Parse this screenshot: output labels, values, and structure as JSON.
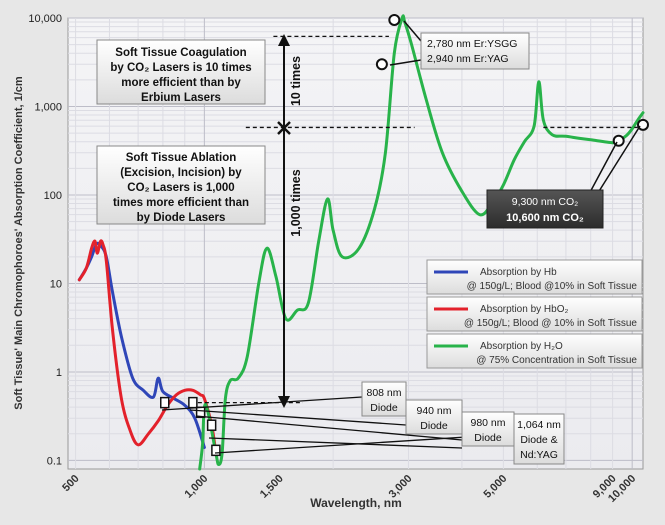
{
  "chart_data": {
    "type": "line",
    "title": "",
    "xlabel": "Wavelength, nm",
    "ylabel": "Soft Tissue' Main Chromophoroes' Absorption Coefficient, 1/cm",
    "xscale": "log",
    "yscale": "log",
    "xlim": [
      480,
      10600
    ],
    "ylim": [
      0.08,
      10000
    ],
    "grid": true,
    "x_ticks": [
      {
        "value": 500,
        "label": "500"
      },
      {
        "value": 1000,
        "label": "1,000"
      },
      {
        "value": 1500,
        "label": "1,500"
      },
      {
        "value": 3000,
        "label": "3,000"
      },
      {
        "value": 5000,
        "label": "5,000"
      },
      {
        "value": 9000,
        "label": "9,000"
      },
      {
        "value": 10000,
        "label": "10,000"
      }
    ],
    "y_ticks": [
      {
        "value": 0.1,
        "label": "0.1"
      },
      {
        "value": 1,
        "label": "1"
      },
      {
        "value": 10,
        "label": "10"
      },
      {
        "value": 100,
        "label": "100"
      },
      {
        "value": 1000,
        "label": "1,000"
      },
      {
        "value": 10000,
        "label": "10,000"
      }
    ],
    "legend_placement": "right",
    "legend": [
      {
        "line1": "Absorption by Hb",
        "line2": "@ 150g/L; Blood @10% in Soft Tissue",
        "color": "#2f46b8"
      },
      {
        "line1": "Absorption by HbO₂",
        "line2": "@ 150g/L; Blood @ 10% in Soft Tissue",
        "color": "#e3212b"
      },
      {
        "line1": "Absorption by H₂O",
        "line2": "@ 75% Concentration in Soft Tissue",
        "color": "#28b34a"
      }
    ],
    "series": [
      {
        "key": "hb",
        "color": "#2f46b8",
        "points": [
          [
            510,
            11
          ],
          [
            530,
            15
          ],
          [
            545,
            20
          ],
          [
            560,
            28
          ],
          [
            575,
            26
          ],
          [
            590,
            20
          ],
          [
            610,
            8
          ],
          [
            640,
            2.5
          ],
          [
            680,
            0.85
          ],
          [
            720,
            0.62
          ],
          [
            760,
            0.52
          ],
          [
            780,
            0.85
          ],
          [
            800,
            0.6
          ],
          [
            850,
            0.5
          ],
          [
            900,
            0.42
          ],
          [
            950,
            0.3
          ],
          [
            1000,
            0.14
          ]
        ]
      },
      {
        "key": "hbo2",
        "color": "#e3212b",
        "points": [
          [
            510,
            11
          ],
          [
            530,
            15
          ],
          [
            545,
            25
          ],
          [
            555,
            30
          ],
          [
            562,
            22
          ],
          [
            572,
            30
          ],
          [
            580,
            27
          ],
          [
            590,
            18
          ],
          [
            610,
            3
          ],
          [
            640,
            0.5
          ],
          [
            670,
            0.22
          ],
          [
            700,
            0.15
          ],
          [
            740,
            0.2
          ],
          [
            780,
            0.28
          ],
          [
            820,
            0.42
          ],
          [
            860,
            0.55
          ],
          [
            900,
            0.62
          ],
          [
            940,
            0.62
          ],
          [
            980,
            0.55
          ],
          [
            1000,
            0.5
          ],
          [
            1040,
            0.25
          ],
          [
            1064,
            0.12
          ]
        ]
      },
      {
        "key": "h2o",
        "color": "#28b34a",
        "points": [
          [
            975,
            0.08
          ],
          [
            990,
            0.15
          ],
          [
            1000,
            0.4
          ],
          [
            1020,
            0.35
          ],
          [
            1064,
            0.12
          ],
          [
            1080,
            0.09
          ],
          [
            1100,
            0.12
          ],
          [
            1120,
            0.5
          ],
          [
            1150,
            0.8
          ],
          [
            1200,
            0.85
          ],
          [
            1260,
            1.5
          ],
          [
            1340,
            10
          ],
          [
            1400,
            25
          ],
          [
            1470,
            12
          ],
          [
            1550,
            4
          ],
          [
            1650,
            5
          ],
          [
            1750,
            6
          ],
          [
            1850,
            30
          ],
          [
            1940,
            90
          ],
          [
            2000,
            40
          ],
          [
            2100,
            20
          ],
          [
            2300,
            25
          ],
          [
            2500,
            70
          ],
          [
            2650,
            300
          ],
          [
            2780,
            4000
          ],
          [
            2900,
            10000
          ],
          [
            2940,
            9000
          ],
          [
            3050,
            5000
          ],
          [
            3300,
            1200
          ],
          [
            3600,
            300
          ],
          [
            4000,
            110
          ],
          [
            4400,
            60
          ],
          [
            4700,
            80
          ],
          [
            5000,
            130
          ],
          [
            5300,
            250
          ],
          [
            5600,
            400
          ],
          [
            5900,
            600
          ],
          [
            6050,
            1900
          ],
          [
            6200,
            700
          ],
          [
            6500,
            480
          ],
          [
            7000,
            460
          ],
          [
            8000,
            420
          ],
          [
            9000,
            390
          ],
          [
            9300,
            410
          ],
          [
            9700,
            470
          ],
          [
            10000,
            560
          ],
          [
            10300,
            700
          ],
          [
            10600,
            850
          ]
        ]
      }
    ],
    "markers": [
      {
        "wavelength": 2780,
        "value": 9500,
        "shape": "circle"
      },
      {
        "wavelength": 2600,
        "value": 3000,
        "shape": "circle"
      },
      {
        "wavelength": 9300,
        "value": 410,
        "shape": "circle"
      },
      {
        "wavelength": 10600,
        "value": 620,
        "shape": "circle"
      },
      {
        "wavelength": 808,
        "value": 0.45,
        "shape": "square"
      },
      {
        "wavelength": 940,
        "value": 0.45,
        "shape": "square"
      },
      {
        "wavelength": 980,
        "value": 0.35,
        "shape": "square"
      },
      {
        "wavelength": 1040,
        "value": 0.25,
        "shape": "square"
      },
      {
        "wavelength": 1064,
        "value": 0.13,
        "shape": "square"
      }
    ],
    "annotations": {
      "coag_line1": "Soft Tissue Coagulation",
      "coag_line2": "by CO₂ Lasers is 10 times",
      "coag_line3": "more efficient than by",
      "coag_line4": "Erbium Lasers",
      "abl_line1": "Soft Tissue Ablation",
      "abl_line2": "(Excision, Incision) by",
      "abl_line3": "CO₂ Lasers is 1,000",
      "abl_line4": "times more efficient than",
      "abl_line5": "by Diode Lasers",
      "ten_times": "10 times",
      "thousand_times": "1,000 times",
      "erbium_line1": "2,780 nm Er:YSGG",
      "erbium_line2": "2,940 nm Er:YAG",
      "co2_line1": "9,300 nm CO₂",
      "co2_line2": "10,600 nm CO₂",
      "diode808_line1": "808 nm",
      "diode808_line2": "Diode",
      "diode940_line1": "940 nm",
      "diode940_line2": "Diode",
      "diode980_line1": "980 nm",
      "diode980_line2": "Diode",
      "nd_line1": "1,064 nm",
      "nd_line2": "Diode &",
      "nd_line3": "Nd:YAG"
    }
  }
}
